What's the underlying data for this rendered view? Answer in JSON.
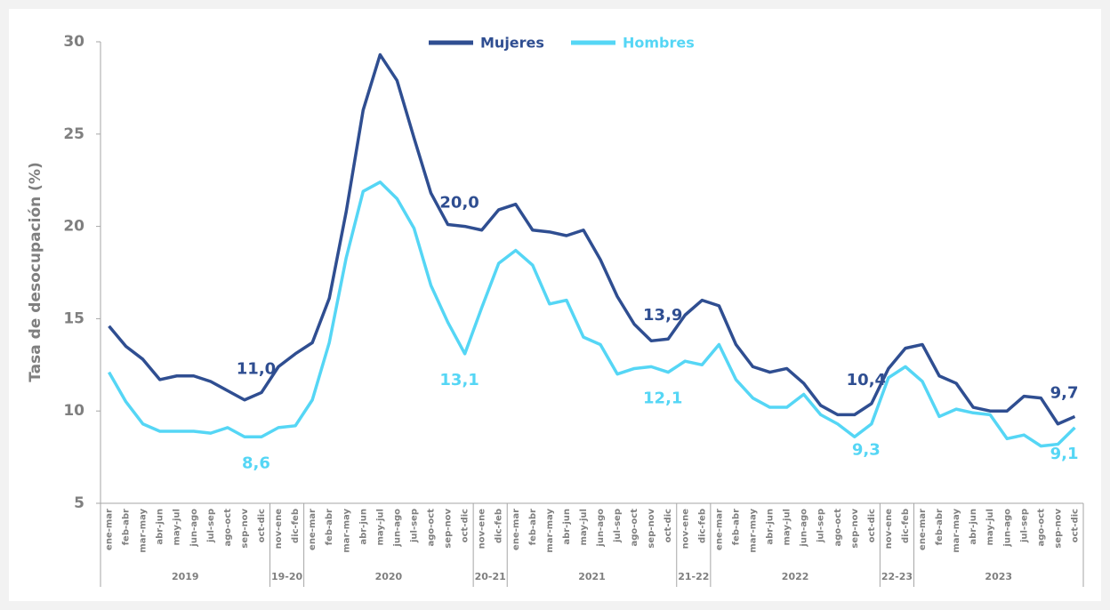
{
  "chart_data": {
    "type": "line",
    "ylabel": "Tasa de desocupación (%)",
    "ylim": [
      5,
      30
    ],
    "yticks": [
      5,
      10,
      15,
      20,
      25,
      30
    ],
    "grid": false,
    "legend": "top",
    "groups": [
      {
        "label": "2019",
        "categories": [
          "ene-mar",
          "feb-abr",
          "mar-may",
          "abr-jun",
          "may-jul",
          "jun-ago",
          "jul-sep",
          "ago-oct",
          "sep-nov",
          "oct-dic"
        ]
      },
      {
        "label": "19-20",
        "categories": [
          "nov-ene",
          "dic-feb"
        ]
      },
      {
        "label": "2020",
        "categories": [
          "ene-mar",
          "feb-abr",
          "mar-may",
          "abr-jun",
          "may-jul",
          "jun-ago",
          "jul-sep",
          "ago-oct",
          "sep-nov",
          "oct-dic"
        ]
      },
      {
        "label": "20-21",
        "categories": [
          "nov-ene",
          "dic-feb"
        ]
      },
      {
        "label": "2021",
        "categories": [
          "ene-mar",
          "feb-abr",
          "mar-may",
          "abr-jun",
          "may-jul",
          "jun-ago",
          "jul-sep",
          "ago-oct",
          "sep-nov",
          "oct-dic"
        ]
      },
      {
        "label": "21-22",
        "categories": [
          "nov-ene",
          "dic-feb"
        ]
      },
      {
        "label": "2022",
        "categories": [
          "ene-mar",
          "feb-abr",
          "mar-may",
          "abr-jun",
          "may-jul",
          "jun-ago",
          "jul-sep",
          "ago-oct",
          "sep-nov",
          "oct-dic"
        ]
      },
      {
        "label": "22-23",
        "categories": [
          "nov-ene",
          "dic-feb"
        ]
      },
      {
        "label": "2023",
        "categories": [
          "ene-mar",
          "feb-abr",
          "mar-may",
          "abr-jun",
          "may-jul",
          "jun-ago",
          "jul-sep",
          "ago-oct",
          "sep-nov",
          "oct-dic"
        ]
      }
    ],
    "series": [
      {
        "name": "Mujeres",
        "color": "#2f4e91",
        "label_side": "above",
        "values": [
          14.6,
          13.5,
          12.8,
          11.7,
          11.9,
          11.9,
          11.6,
          11.1,
          10.6,
          11.0,
          12.4,
          13.1,
          13.7,
          16.1,
          20.8,
          26.3,
          29.3,
          27.9,
          24.8,
          21.8,
          20.1,
          20.0,
          19.8,
          20.9,
          21.2,
          19.8,
          19.7,
          19.5,
          19.8,
          18.2,
          16.2,
          14.7,
          13.8,
          13.9,
          15.2,
          16.0,
          15.7,
          13.6,
          12.4,
          12.1,
          12.3,
          11.5,
          10.3,
          9.8,
          9.8,
          10.4,
          12.3,
          13.4,
          13.6,
          11.9,
          11.5,
          10.2,
          10.0,
          10.0,
          10.8,
          10.7,
          9.3,
          9.7
        ],
        "value_labels": [
          null,
          null,
          null,
          null,
          null,
          null,
          null,
          null,
          null,
          "11,0",
          null,
          null,
          null,
          null,
          null,
          null,
          null,
          null,
          null,
          null,
          null,
          "20,0",
          null,
          null,
          null,
          null,
          null,
          null,
          null,
          null,
          null,
          null,
          null,
          "13,9",
          null,
          null,
          null,
          null,
          null,
          null,
          null,
          null,
          null,
          null,
          null,
          "10,4",
          null,
          null,
          null,
          null,
          null,
          null,
          null,
          null,
          null,
          null,
          null,
          "9,7"
        ]
      },
      {
        "name": "Hombres",
        "color": "#55d6f5",
        "label_side": "below",
        "values": [
          12.1,
          10.5,
          9.3,
          8.9,
          8.9,
          8.9,
          8.8,
          9.1,
          8.6,
          8.6,
          9.1,
          9.2,
          10.6,
          13.7,
          18.3,
          21.9,
          22.4,
          21.5,
          19.9,
          16.8,
          14.8,
          13.1,
          15.6,
          18.0,
          18.7,
          17.9,
          15.8,
          16.0,
          14.0,
          13.6,
          12.0,
          12.3,
          12.4,
          12.1,
          12.7,
          12.5,
          13.6,
          11.7,
          10.7,
          10.2,
          10.2,
          10.9,
          9.8,
          9.3,
          8.6,
          9.3,
          11.8,
          12.4,
          11.6,
          9.7,
          10.1,
          9.9,
          9.8,
          8.5,
          8.7,
          8.1,
          8.2,
          9.1
        ],
        "value_labels": [
          null,
          null,
          null,
          null,
          null,
          null,
          null,
          null,
          null,
          "8,6",
          null,
          null,
          null,
          null,
          null,
          null,
          null,
          null,
          null,
          null,
          null,
          "13,1",
          null,
          null,
          null,
          null,
          null,
          null,
          null,
          null,
          null,
          null,
          null,
          "12,1",
          null,
          null,
          null,
          null,
          null,
          null,
          null,
          null,
          null,
          null,
          null,
          "9,3",
          null,
          null,
          null,
          null,
          null,
          null,
          null,
          null,
          null,
          null,
          null,
          "9,1"
        ]
      }
    ]
  }
}
